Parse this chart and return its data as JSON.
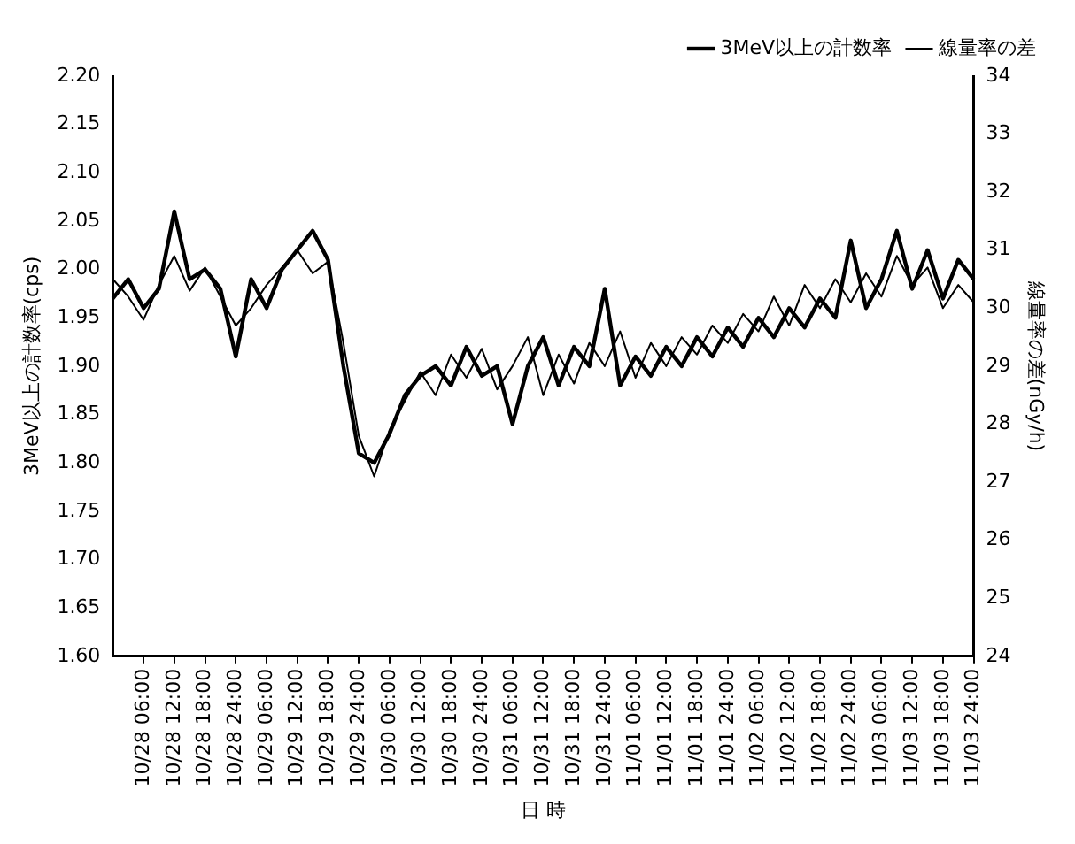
{
  "chart_data": {
    "type": "line",
    "xlabel": "日 時",
    "ylabel": "3MeV以上の計数率(cps)",
    "y2label": "線量率の差(nGy/h)",
    "legend": "top right",
    "marker": "none",
    "line_style": "solid",
    "categories": [
      null,
      null,
      "10/28 06:00",
      null,
      "10/28 12:00",
      null,
      "10/28 18:00",
      null,
      "10/28 24:00",
      null,
      "10/29 06:00",
      null,
      "10/29 12:00",
      null,
      "10/29 18:00",
      null,
      "10/29 24:00",
      null,
      "10/30 06:00",
      null,
      "10/30 12:00",
      null,
      "10/30 18:00",
      null,
      "10/30 24:00",
      null,
      "10/31 06:00",
      null,
      "10/31 12:00",
      null,
      "10/31 18:00",
      null,
      "10/31 24:00",
      null,
      "11/01 06:00",
      null,
      "11/01 12:00",
      null,
      "11/01 18:00",
      null,
      "11/01 24:00",
      null,
      "11/02 06:00",
      null,
      "11/02 12:00",
      null,
      "11/02 18:00",
      null,
      "11/02 24:00",
      null,
      "11/03 06:00",
      null,
      "11/03 12:00",
      null,
      "11/03 18:00",
      null,
      "11/03 24:00"
    ],
    "series": [
      {
        "name": "3MeV以上の計数率",
        "color": "#000000",
        "values": [
          1.97,
          1.99,
          1.96,
          1.98,
          2.06,
          1.99,
          2.0,
          1.98,
          1.91,
          1.99,
          1.96,
          2.0,
          2.02,
          2.04,
          2.01,
          1.9,
          1.81,
          1.8,
          1.83,
          1.87,
          1.89,
          1.9,
          1.88,
          1.92,
          1.89,
          1.9,
          1.84,
          1.9,
          1.93,
          1.88,
          1.92,
          1.9,
          1.98,
          1.88,
          1.91,
          1.89,
          1.92,
          1.9,
          1.93,
          1.91,
          1.94,
          1.92,
          1.95,
          1.93,
          1.96,
          1.94,
          1.97,
          1.95,
          2.03,
          1.96,
          1.99,
          2.04,
          1.98,
          2.02,
          1.97,
          2.01,
          1.99
        ]
      },
      {
        "name": "線量率の差",
        "color": "#000000",
        "axis": "y2",
        "values": [
          30.5,
          30.2,
          29.8,
          30.4,
          30.9,
          30.3,
          30.7,
          30.2,
          29.7,
          30.0,
          30.4,
          30.7,
          31.0,
          30.6,
          30.8,
          29.4,
          27.8,
          27.1,
          27.9,
          28.4,
          28.9,
          28.5,
          29.2,
          28.8,
          29.3,
          28.6,
          29.0,
          29.5,
          28.5,
          29.2,
          28.7,
          29.4,
          29.0,
          29.6,
          28.8,
          29.4,
          29.0,
          29.5,
          29.2,
          29.7,
          29.4,
          29.9,
          29.6,
          30.2,
          29.7,
          30.4,
          30.0,
          30.5,
          30.1,
          30.6,
          30.2,
          30.9,
          30.4,
          30.7,
          30.0,
          30.4,
          30.1
        ]
      }
    ],
    "ylim": [
      1.6,
      2.2
    ],
    "yticks": [
      {
        "value": 1.6,
        "label": "1.60"
      },
      {
        "value": 1.65,
        "label": "1.65"
      },
      {
        "value": 1.7,
        "label": "1.70"
      },
      {
        "value": 1.75,
        "label": "1.75"
      },
      {
        "value": 1.8,
        "label": "1.80"
      },
      {
        "value": 1.85,
        "label": "1.85"
      },
      {
        "value": 1.9,
        "label": "1.90"
      },
      {
        "value": 1.95,
        "label": "1.95"
      },
      {
        "value": 2.0,
        "label": "2.00"
      },
      {
        "value": 2.05,
        "label": "2.05"
      },
      {
        "value": 2.1,
        "label": "2.10"
      },
      {
        "value": 2.15,
        "label": "2.15"
      },
      {
        "value": 2.2,
        "label": "2.20"
      }
    ],
    "y2lim": [
      24,
      34
    ],
    "y2ticks": [
      24,
      25,
      26,
      27,
      28,
      29,
      30,
      31,
      32,
      33,
      34
    ]
  }
}
